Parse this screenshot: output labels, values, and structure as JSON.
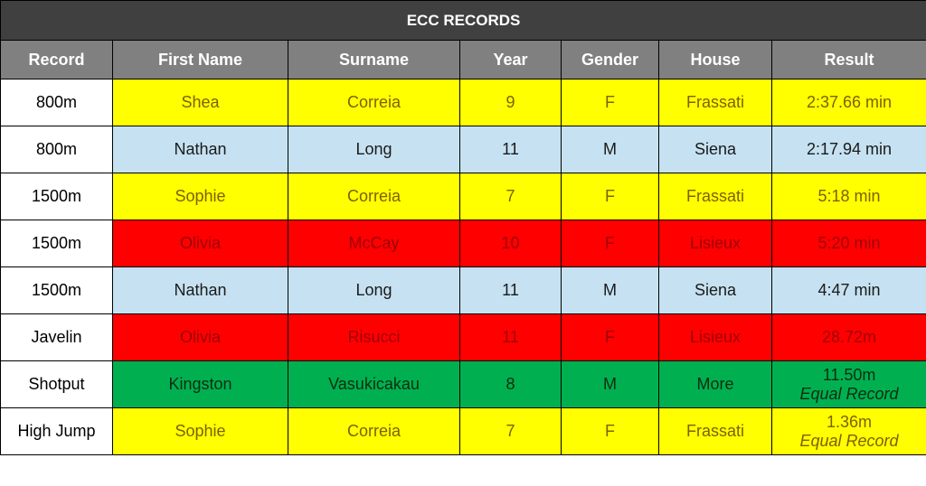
{
  "title": "ECC RECORDS",
  "table": {
    "headers": [
      "Record",
      "First Name",
      "Surname",
      "Year",
      "Gender",
      "House",
      "Result"
    ],
    "rows": [
      {
        "cells": [
          "800m",
          "Shea",
          "Correia",
          9,
          "F",
          "Frassati",
          "2:37.66 min"
        ],
        "fill": "#ffff00",
        "text_color": "#7f6000"
      },
      {
        "cells": [
          "800m",
          "Nathan",
          "Long",
          11,
          "M",
          "Siena",
          "2:17.94 min"
        ],
        "fill": "#c6e2f2",
        "text_color": "#1a1a1a"
      },
      {
        "cells": [
          "1500m",
          "Sophie",
          "Correia",
          7,
          "F",
          "Frassati",
          "5:18 min"
        ],
        "fill": "#ffff00",
        "text_color": "#7f6000"
      },
      {
        "cells": [
          "1500m",
          "Olivia",
          "McCay",
          10,
          "F",
          "Lisieux",
          "5:20 min"
        ],
        "fill": "#ff0000",
        "text_color": "#9c0006"
      },
      {
        "cells": [
          "1500m",
          "Nathan",
          "Long",
          11,
          "M",
          "Siena",
          "4:47 min"
        ],
        "fill": "#c6e2f2",
        "text_color": "#1a1a1a"
      },
      {
        "cells": [
          "Javelin",
          "Olivia",
          "Risucci",
          11,
          "F",
          "Lisieux",
          "28.72m"
        ],
        "fill": "#ff0000",
        "text_color": "#9c0006"
      },
      {
        "cells": [
          "Shotput",
          "Kingston",
          "Vasukicakau",
          8,
          "M",
          "More",
          "11.50m"
        ],
        "note": "Equal Record",
        "fill": "#00b050",
        "text_color": "#0b2d10"
      },
      {
        "cells": [
          "High Jump",
          "Sophie",
          "Correia",
          7,
          "F",
          "Frassati",
          "1.36m"
        ],
        "note": "Equal Record",
        "fill": "#ffff00",
        "text_color": "#7f6000"
      }
    ]
  }
}
